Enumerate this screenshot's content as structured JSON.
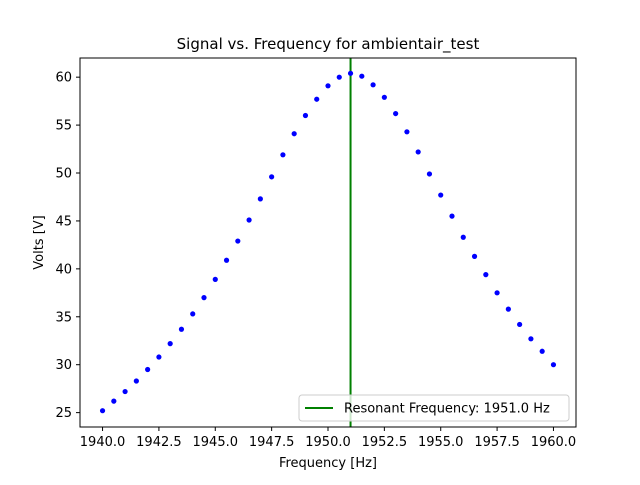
{
  "chart_data": {
    "type": "scatter",
    "title": "Signal vs. Frequency for ambientair_test",
    "xlabel": "Frequency [Hz]",
    "ylabel": "Volts [V]",
    "xlim": [
      1939.0,
      1961.0
    ],
    "ylim": [
      23.5,
      62.0
    ],
    "x_ticks": [
      1940.0,
      1942.5,
      1945.0,
      1947.5,
      1950.0,
      1952.5,
      1955.0,
      1957.5,
      1960.0
    ],
    "x_tick_labels": [
      "1940.0",
      "1942.5",
      "1945.0",
      "1947.5",
      "1950.0",
      "1952.5",
      "1955.0",
      "1957.5",
      "1960.0"
    ],
    "y_ticks": [
      25,
      30,
      35,
      40,
      45,
      50,
      55,
      60
    ],
    "y_tick_labels": [
      "25",
      "30",
      "35",
      "40",
      "45",
      "50",
      "55",
      "60"
    ],
    "grid": false,
    "series": [
      {
        "color": "#0000ff",
        "x": [
          1940.0,
          1940.5,
          1941.0,
          1941.5,
          1942.0,
          1942.5,
          1943.0,
          1943.5,
          1944.0,
          1944.5,
          1945.0,
          1945.5,
          1946.0,
          1946.5,
          1947.0,
          1947.5,
          1948.0,
          1948.5,
          1949.0,
          1949.5,
          1950.0,
          1950.5,
          1951.0,
          1951.5,
          1952.0,
          1952.5,
          1953.0,
          1953.5,
          1954.0,
          1954.5,
          1955.0,
          1955.5,
          1956.0,
          1956.5,
          1957.0,
          1957.5,
          1958.0,
          1958.5,
          1959.0,
          1959.5,
          1960.0
        ],
        "y": [
          25.2,
          26.2,
          27.2,
          28.3,
          29.5,
          30.8,
          32.2,
          33.7,
          35.3,
          37.0,
          38.9,
          40.9,
          42.9,
          45.1,
          47.3,
          49.6,
          51.9,
          54.1,
          56.0,
          57.7,
          59.1,
          60.0,
          60.4,
          60.1,
          59.2,
          57.9,
          56.2,
          54.3,
          52.2,
          49.9,
          47.7,
          45.5,
          43.3,
          41.3,
          39.4,
          37.5,
          35.8,
          34.2,
          32.7,
          31.4,
          30.0
        ]
      }
    ],
    "vlines": [
      {
        "x": 1951.0,
        "color": "#008000",
        "label": "Resonant Frequency: 1951.0 Hz"
      }
    ],
    "legend": {
      "placement": "lower-right",
      "entries": [
        "Resonant Frequency: 1951.0 Hz"
      ]
    }
  }
}
